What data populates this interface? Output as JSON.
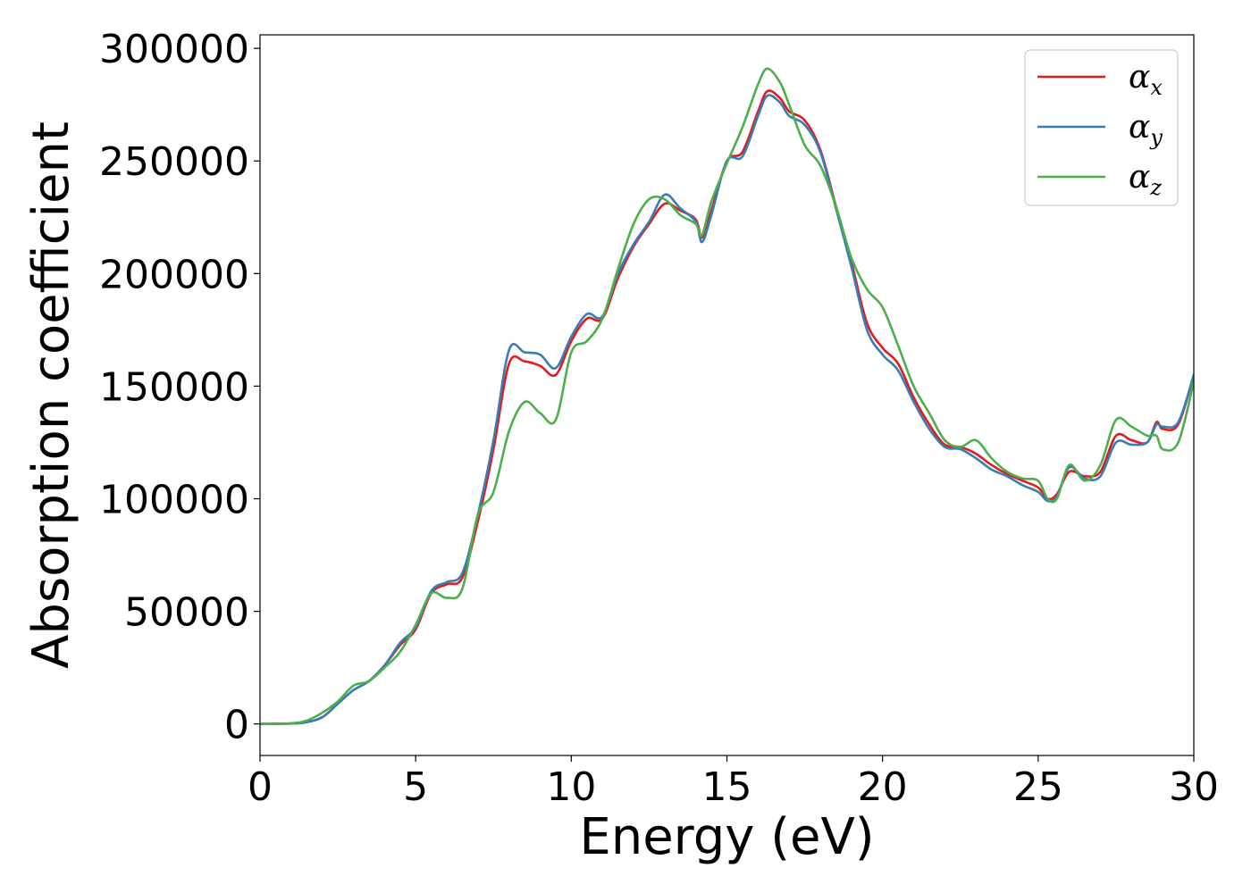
{
  "chart_data": {
    "type": "line",
    "title": "",
    "xlabel": "Energy (eV)",
    "ylabel": "Absorption coefficient",
    "xlim": [
      0,
      30
    ],
    "ylim": [
      -14000,
      306000
    ],
    "xticks": [
      0,
      5,
      10,
      15,
      20,
      25,
      30
    ],
    "xtick_labels": [
      "0",
      "5",
      "10",
      "15",
      "20",
      "25",
      "30"
    ],
    "yticks": [
      0,
      50000,
      100000,
      150000,
      200000,
      250000,
      300000
    ],
    "ytick_labels": [
      "0",
      "50000",
      "100000",
      "150000",
      "200000",
      "250000",
      "300000"
    ],
    "grid": false,
    "legend_position": "top-right",
    "series": [
      {
        "name": "α",
        "subscript": "x",
        "color": "#e41a1c",
        "x": [
          0,
          1,
          1.5,
          2,
          2.5,
          3,
          3.5,
          4,
          4.5,
          5,
          5.5,
          6,
          6.5,
          7,
          7.5,
          8,
          8.5,
          9,
          9.5,
          10,
          10.5,
          11,
          11.5,
          12,
          12.5,
          13,
          13.5,
          14,
          14.2,
          14.5,
          15,
          15.5,
          16,
          16.3,
          16.7,
          17,
          17.5,
          18,
          18.5,
          19,
          19.5,
          20,
          20.5,
          21,
          21.5,
          22,
          22.5,
          23,
          23.5,
          24,
          24.5,
          25,
          25.3,
          25.6,
          26,
          26.5,
          27,
          27.5,
          28,
          28.5,
          28.8,
          29,
          29.5,
          30
        ],
        "y": [
          0,
          200,
          800,
          3000,
          9000,
          15000,
          19000,
          26000,
          35000,
          42000,
          58000,
          62000,
          65000,
          90000,
          122000,
          160000,
          161000,
          159000,
          155000,
          170000,
          180000,
          180000,
          198000,
          212000,
          222000,
          231000,
          228000,
          224000,
          216000,
          228000,
          250000,
          254000,
          272000,
          281000,
          278000,
          272000,
          268000,
          255000,
          230000,
          205000,
          178000,
          167000,
          160000,
          145000,
          133000,
          124000,
          123000,
          120000,
          115000,
          111000,
          108000,
          105000,
          100000,
          102000,
          112000,
          110000,
          112000,
          128000,
          126000,
          125000,
          134000,
          131000,
          133000,
          155000
        ]
      },
      {
        "name": "α",
        "subscript": "y",
        "color": "#377eb8",
        "x": [
          0,
          1,
          1.5,
          2,
          2.5,
          3,
          3.5,
          4,
          4.5,
          5,
          5.5,
          6,
          6.5,
          7,
          7.5,
          8,
          8.5,
          9,
          9.5,
          10,
          10.5,
          11,
          11.5,
          12,
          12.5,
          13,
          13.5,
          14,
          14.2,
          14.5,
          15,
          15.5,
          16,
          16.3,
          16.7,
          17,
          17.5,
          18,
          18.5,
          19,
          19.5,
          20,
          20.5,
          21,
          21.5,
          22,
          22.5,
          23,
          23.5,
          24,
          24.5,
          25,
          25.3,
          25.6,
          26,
          26.5,
          27,
          27.5,
          28,
          28.5,
          28.8,
          29,
          29.5,
          30
        ],
        "y": [
          0,
          200,
          800,
          3000,
          9000,
          15000,
          19000,
          26000,
          36000,
          43000,
          59000,
          63000,
          67000,
          93000,
          126000,
          166000,
          165000,
          164000,
          158000,
          172000,
          182000,
          181000,
          200000,
          213000,
          223000,
          235000,
          229000,
          223000,
          214000,
          226000,
          250000,
          252000,
          270000,
          279000,
          276000,
          270000,
          266000,
          254000,
          229000,
          203000,
          175000,
          164000,
          157000,
          143000,
          131000,
          123000,
          122000,
          118000,
          113000,
          110000,
          106000,
          103000,
          99000,
          101000,
          114000,
          109000,
          110000,
          125000,
          124000,
          125000,
          133000,
          132000,
          134000,
          155000
        ]
      },
      {
        "name": "α",
        "subscript": "z",
        "color": "#4daf4a",
        "x": [
          0,
          1,
          1.5,
          2,
          2.5,
          3,
          3.5,
          4,
          4.5,
          5,
          5.5,
          6,
          6.5,
          7,
          7.5,
          8,
          8.5,
          9,
          9.5,
          10,
          10.5,
          11,
          11.5,
          12,
          12.5,
          13,
          13.5,
          14,
          14.2,
          14.5,
          15,
          15.5,
          16,
          16.3,
          16.7,
          17,
          17.5,
          18,
          18.5,
          19,
          19.5,
          20,
          20.5,
          21,
          21.5,
          22,
          22.5,
          23,
          23.5,
          24,
          24.5,
          25,
          25.3,
          25.6,
          26,
          26.5,
          27,
          27.5,
          28,
          28.5,
          28.8,
          29,
          29.5,
          30
        ],
        "y": [
          0,
          300,
          1500,
          5000,
          10000,
          17000,
          19000,
          25000,
          32000,
          44000,
          58000,
          56000,
          60000,
          93000,
          103000,
          130000,
          143000,
          138000,
          135000,
          165000,
          170000,
          180000,
          202000,
          222000,
          233000,
          233000,
          226000,
          222000,
          217000,
          232000,
          249000,
          265000,
          284000,
          291000,
          285000,
          275000,
          257000,
          248000,
          230000,
          207000,
          193000,
          185000,
          168000,
          150000,
          138000,
          126000,
          123000,
          126000,
          118000,
          112000,
          109000,
          108000,
          100000,
          100000,
          115000,
          108000,
          115000,
          135000,
          132000,
          128000,
          128000,
          122000,
          125000,
          152000
        ]
      }
    ]
  }
}
